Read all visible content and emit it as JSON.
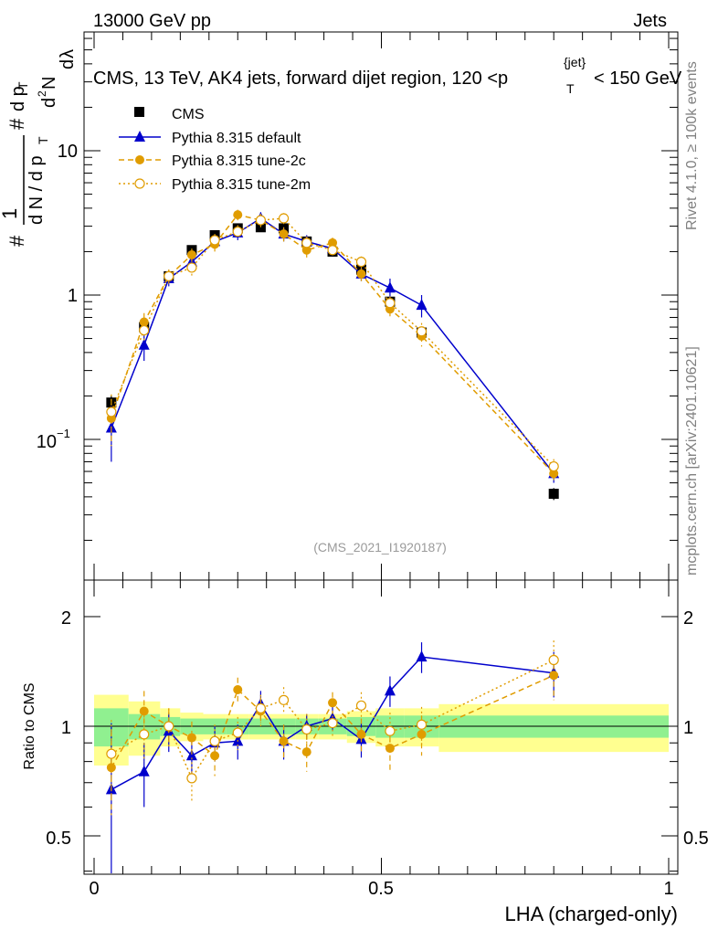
{
  "header": {
    "left": "13000 GeV pp",
    "right": "Jets",
    "title": "CMS, 13 TeV, AK4 jets, forward dijet region, 120 <p",
    "title_sup": "{jet}",
    "title_sub": "T",
    "title_end": "< 150 GeV",
    "watermark": "(CMS_2021_I1920187)"
  },
  "side_text": {
    "rivet": "Rivet 4.1.0, ≥ 100k events",
    "mcplots": "mcplots.cern.ch [arXiv:2401.10621]"
  },
  "y_label": {
    "part1": "#",
    "part2": "1",
    "part3": "d N / d p",
    "part3_sub": "T",
    "part4": "#",
    "part5": "d p",
    "part5_sub": "T",
    "part6": "d",
    "part6_sup": "2",
    "part6_end": "N",
    "part7": "d",
    "part7_end": "λ"
  },
  "ratio_ylabel": "Ratio to CMS",
  "x_label": "LHA (charged-only)",
  "legend": [
    {
      "label": "CMS",
      "color": "#000000"
    },
    {
      "label": "Pythia 8.315 default",
      "color": "#0000cc"
    },
    {
      "label": "Pythia 8.315 tune-2c",
      "color": "#e09c00"
    },
    {
      "label": "Pythia 8.315 tune-2m",
      "color": "#e09c00"
    }
  ],
  "tick_labels": {
    "main_y": [
      "10",
      "1",
      "10",
      "−1"
    ],
    "ratio_y": [
      "2",
      "1",
      "0.5"
    ],
    "x": [
      "0",
      "0.5",
      "1"
    ]
  },
  "chart_data": {
    "type": "line",
    "x": [
      0.03,
      0.087,
      0.13,
      0.17,
      0.21,
      0.25,
      0.29,
      0.33,
      0.37,
      0.415,
      0.465,
      0.515,
      0.57,
      0.8
    ],
    "xlim": [
      0,
      1
    ],
    "ylim_main": [
      0.015,
      70
    ],
    "ylim_ratio": [
      0.38,
      2.4
    ],
    "series": [
      {
        "name": "CMS",
        "values": [
          0.18,
          0.6,
          1.35,
          2.05,
          2.6,
          2.9,
          2.95,
          2.9,
          2.35,
          2.0,
          1.5,
          0.9,
          0.55,
          0.042
        ],
        "errors": [
          0.02,
          0.05,
          0.1,
          0.12,
          0.15,
          0.15,
          0.15,
          0.15,
          0.12,
          0.1,
          0.08,
          0.05,
          0.04,
          0.004
        ]
      },
      {
        "name": "Pythia 8.315 default",
        "values": [
          0.12,
          0.45,
          1.3,
          1.7,
          2.35,
          2.7,
          3.4,
          2.65,
          2.35,
          2.1,
          1.4,
          1.12,
          0.85,
          0.058
        ],
        "errors": [
          0.05,
          0.1,
          0.15,
          0.2,
          0.25,
          0.3,
          0.35,
          0.3,
          0.25,
          0.2,
          0.15,
          0.18,
          0.15,
          0.008
        ]
      },
      {
        "name": "Pythia 8.315 tune-2c",
        "values": [
          0.14,
          0.65,
          1.35,
          1.9,
          2.25,
          3.6,
          3.3,
          2.65,
          2.05,
          2.3,
          1.4,
          0.8,
          0.52,
          0.058
        ],
        "errors": [
          0.05,
          0.1,
          0.15,
          0.2,
          0.25,
          0.3,
          0.35,
          0.3,
          0.25,
          0.2,
          0.15,
          0.1,
          0.08,
          0.008
        ]
      },
      {
        "name": "Pythia 8.315 tune-2m",
        "values": [
          0.155,
          0.57,
          1.35,
          1.55,
          2.4,
          2.75,
          3.3,
          3.4,
          2.3,
          2.05,
          1.7,
          0.88,
          0.56,
          0.065
        ],
        "errors": [
          0.05,
          0.1,
          0.15,
          0.2,
          0.25,
          0.3,
          0.35,
          0.3,
          0.25,
          0.2,
          0.15,
          0.1,
          0.08,
          0.008
        ]
      }
    ],
    "ratio_series": [
      {
        "name": "Pythia 8.315 default",
        "values": [
          0.67,
          0.75,
          0.97,
          0.83,
          0.9,
          0.91,
          1.15,
          0.91,
          1.0,
          1.05,
          0.92,
          1.25,
          1.55,
          1.4
        ],
        "errors": [
          0.35,
          0.15,
          0.12,
          0.1,
          0.1,
          0.1,
          0.1,
          0.1,
          0.08,
          0.08,
          0.1,
          0.12,
          0.15,
          0.2
        ]
      },
      {
        "name": "Pythia 8.315 tune-2c",
        "values": [
          0.77,
          1.1,
          1.0,
          0.93,
          0.83,
          1.26,
          1.1,
          0.91,
          0.85,
          1.16,
          0.95,
          0.87,
          0.95,
          1.38
        ],
        "errors": [
          0.2,
          0.15,
          0.12,
          0.1,
          0.1,
          0.1,
          0.1,
          0.1,
          0.1,
          0.08,
          0.1,
          0.12,
          0.12,
          0.2
        ]
      },
      {
        "name": "Pythia 8.315 tune-2m",
        "values": [
          0.84,
          0.95,
          1.0,
          0.72,
          0.91,
          0.96,
          1.12,
          1.18,
          0.98,
          1.02,
          1.14,
          0.97,
          1.01,
          1.52
        ],
        "errors": [
          0.2,
          0.15,
          0.12,
          0.1,
          0.1,
          0.1,
          0.1,
          0.1,
          0.1,
          0.08,
          0.1,
          0.12,
          0.12,
          0.2
        ]
      }
    ],
    "bands": {
      "edges": [
        0,
        0.06,
        0.115,
        0.15,
        0.19,
        0.23,
        0.27,
        0.31,
        0.35,
        0.39,
        0.44,
        0.49,
        0.54,
        0.6,
        1.0
      ],
      "inner": [
        0.12,
        0.08,
        0.06,
        0.05,
        0.05,
        0.05,
        0.05,
        0.05,
        0.05,
        0.05,
        0.06,
        0.07,
        0.07,
        0.07
      ],
      "outer": [
        0.22,
        0.17,
        0.12,
        0.09,
        0.08,
        0.08,
        0.08,
        0.08,
        0.08,
        0.08,
        0.1,
        0.12,
        0.12,
        0.15
      ]
    }
  },
  "colors": {
    "cms": "#000000",
    "default": "#0000cc",
    "tune": "#e09c00",
    "band_inner": "#90f090",
    "band_outer": "#ffff90"
  }
}
